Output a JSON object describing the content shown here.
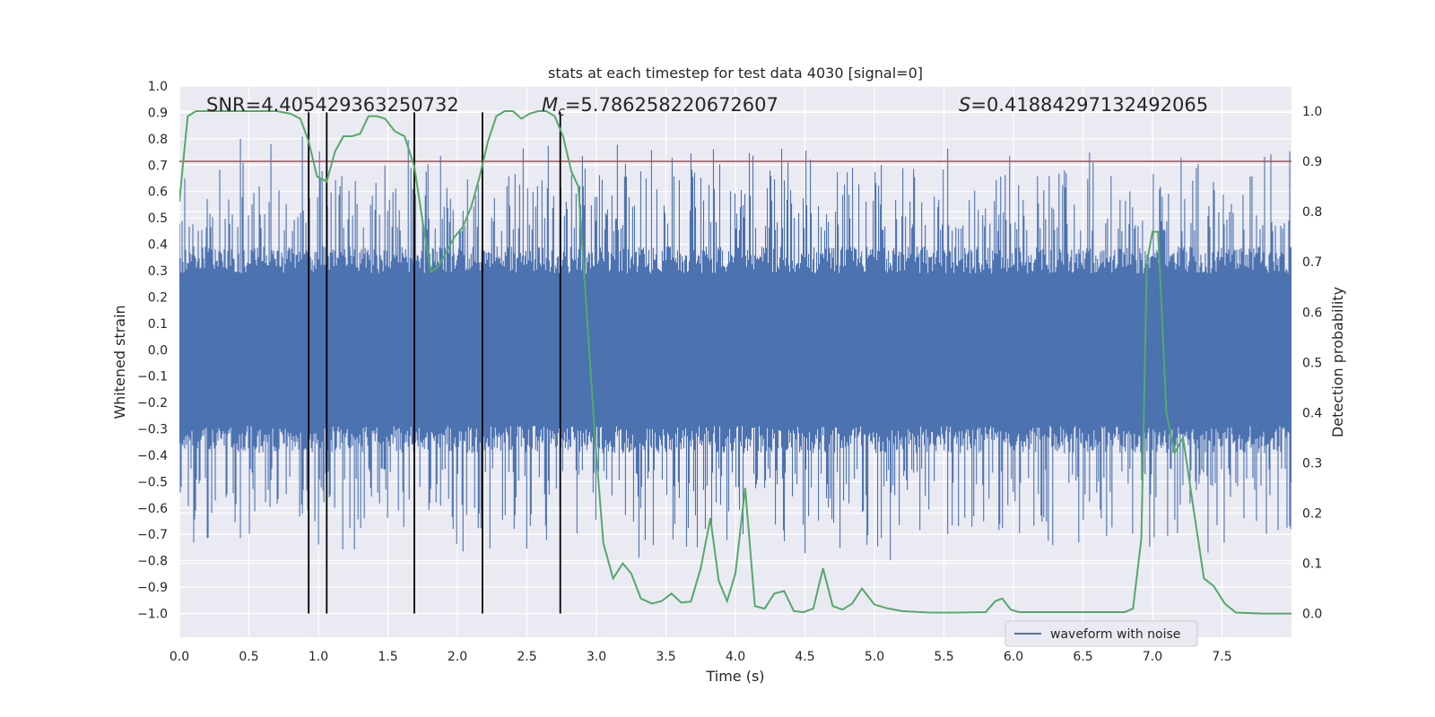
{
  "chart_data": {
    "type": "line",
    "title": "stats at each timestep for test data 4030 [signal=0]",
    "xlabel": "Time (s)",
    "ylabel_left": "Whitened strain",
    "ylabel_right": "Detection probability",
    "xlim": [
      0.0,
      8.0
    ],
    "ylim_left": [
      -1.09,
      1.0
    ],
    "ylim_right": [
      -0.047,
      1.05
    ],
    "x_ticks": [
      "0.0",
      "0.5",
      "1.0",
      "1.5",
      "2.0",
      "2.5",
      "3.0",
      "3.5",
      "4.0",
      "4.5",
      "5.0",
      "5.5",
      "6.0",
      "6.5",
      "7.0",
      "7.5"
    ],
    "y_left_ticks": [
      "1.0",
      "0.9",
      "0.8",
      "0.7",
      "0.6",
      "0.5",
      "0.4",
      "0.3",
      "0.2",
      "0.1",
      "0.0",
      "−0.1",
      "−0.2",
      "−0.3",
      "−0.4",
      "−0.5",
      "−0.6",
      "−0.7",
      "−0.8",
      "−0.9",
      "−1.0"
    ],
    "y_right_ticks": [
      "1.0",
      "0.9",
      "0.8",
      "0.7",
      "0.6",
      "0.5",
      "0.4",
      "0.3",
      "0.2",
      "0.1",
      "0.0"
    ],
    "annotations": {
      "snr": "SNR=4.405429363250732",
      "mc_symbol": "M",
      "mc_sub": "c",
      "mc_value": "=5.786258220672607",
      "s_symbol": "S",
      "s_value": "=0.41884297132492065"
    },
    "threshold": {
      "value": 0.9,
      "color": "#c44e52"
    },
    "vertical_lines": [
      0.93,
      1.06,
      1.69,
      2.18,
      2.74
    ],
    "waveform": {
      "name": "waveform with noise",
      "color": "#4c72b0",
      "core_amplitude": 0.37,
      "spike_amplitude_range": [
        0.45,
        0.82
      ]
    },
    "probability": {
      "color": "#55a868",
      "x": [
        0.0,
        0.06,
        0.12,
        0.2,
        0.3,
        0.4,
        0.5,
        0.6,
        0.7,
        0.8,
        0.87,
        0.93,
        0.99,
        1.06,
        1.12,
        1.18,
        1.24,
        1.3,
        1.36,
        1.42,
        1.48,
        1.55,
        1.62,
        1.69,
        1.75,
        1.81,
        1.86,
        1.92,
        1.98,
        2.04,
        2.1,
        2.16,
        2.22,
        2.28,
        2.34,
        2.4,
        2.46,
        2.52,
        2.58,
        2.64,
        2.7,
        2.76,
        2.82,
        2.87,
        2.93,
        2.99,
        3.05,
        3.12,
        3.19,
        3.25,
        3.32,
        3.4,
        3.47,
        3.54,
        3.61,
        3.68,
        3.75,
        3.82,
        3.88,
        3.94,
        4.0,
        4.07,
        4.14,
        4.21,
        4.28,
        4.35,
        4.42,
        4.49,
        4.56,
        4.63,
        4.7,
        4.77,
        4.84,
        4.91,
        5.0,
        5.1,
        5.2,
        5.4,
        5.6,
        5.8,
        5.87,
        5.92,
        5.98,
        6.04,
        6.1,
        6.3,
        6.5,
        6.7,
        6.8,
        6.86,
        6.92,
        6.96,
        7.0,
        7.04,
        7.1,
        7.16,
        7.22,
        7.3,
        7.37,
        7.44,
        7.52,
        7.6,
        7.8,
        8.0
      ],
      "y": [
        0.82,
        0.99,
        1.0,
        1.0,
        1.0,
        1.0,
        1.0,
        1.0,
        1.0,
        0.995,
        0.985,
        0.94,
        0.87,
        0.86,
        0.92,
        0.95,
        0.95,
        0.955,
        0.99,
        0.99,
        0.985,
        0.96,
        0.95,
        0.89,
        0.78,
        0.68,
        0.69,
        0.72,
        0.75,
        0.77,
        0.81,
        0.87,
        0.94,
        0.99,
        1.0,
        1.0,
        0.985,
        0.995,
        1.0,
        1.0,
        0.99,
        0.95,
        0.88,
        0.85,
        0.6,
        0.35,
        0.14,
        0.07,
        0.1,
        0.08,
        0.03,
        0.02,
        0.025,
        0.04,
        0.022,
        0.024,
        0.09,
        0.19,
        0.065,
        0.025,
        0.08,
        0.25,
        0.015,
        0.01,
        0.04,
        0.045,
        0.005,
        0.003,
        0.01,
        0.09,
        0.015,
        0.008,
        0.02,
        0.05,
        0.018,
        0.01,
        0.005,
        0.002,
        0.002,
        0.003,
        0.025,
        0.03,
        0.008,
        0.003,
        0.003,
        0.003,
        0.003,
        0.003,
        0.003,
        0.01,
        0.15,
        0.7,
        0.76,
        0.76,
        0.4,
        0.32,
        0.35,
        0.2,
        0.07,
        0.055,
        0.02,
        0.002,
        0.0,
        0.0
      ]
    }
  }
}
